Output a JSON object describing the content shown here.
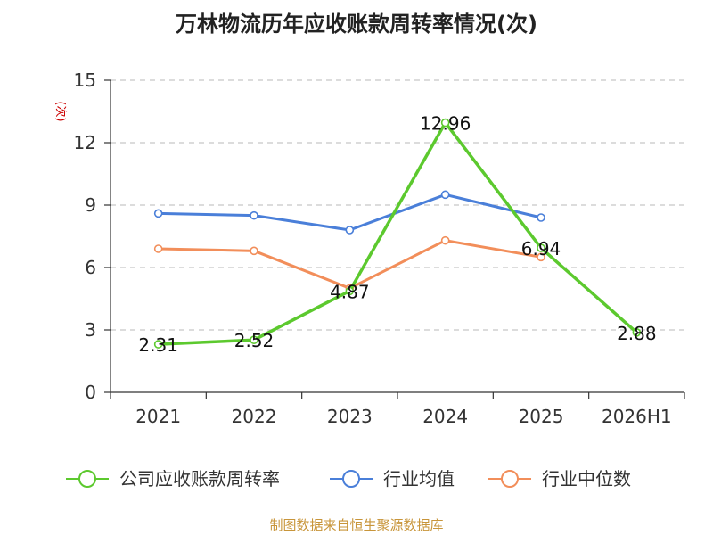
{
  "chart_data": {
    "type": "line",
    "title": "万林物流历年应收账款周转率情况(次)",
    "ylabel": "(次)",
    "xlabel": "",
    "categories": [
      "2021",
      "2022",
      "2023",
      "2024",
      "2025",
      "2026H1"
    ],
    "ylim": [
      0,
      15
    ],
    "yticks": [
      0,
      3,
      6,
      9,
      12,
      15
    ],
    "grid": true,
    "legend_position": "bottom",
    "series": [
      {
        "name": "公司应收账款周转率",
        "color": "#5cc92e",
        "values": [
          2.31,
          2.52,
          4.87,
          12.96,
          6.94,
          2.88
        ],
        "labels": [
          "2.31",
          "2.52",
          "4.87",
          "12.96",
          "6.94",
          "2.88"
        ]
      },
      {
        "name": "行业均值",
        "color": "#4a7fd9",
        "values": [
          8.6,
          8.5,
          7.8,
          9.5,
          8.4,
          null
        ]
      },
      {
        "name": "行业中位数",
        "color": "#f28e5a",
        "values": [
          6.9,
          6.8,
          5.0,
          7.3,
          6.5,
          null
        ]
      }
    ],
    "source": "制图数据来自恒生聚源数据库"
  }
}
